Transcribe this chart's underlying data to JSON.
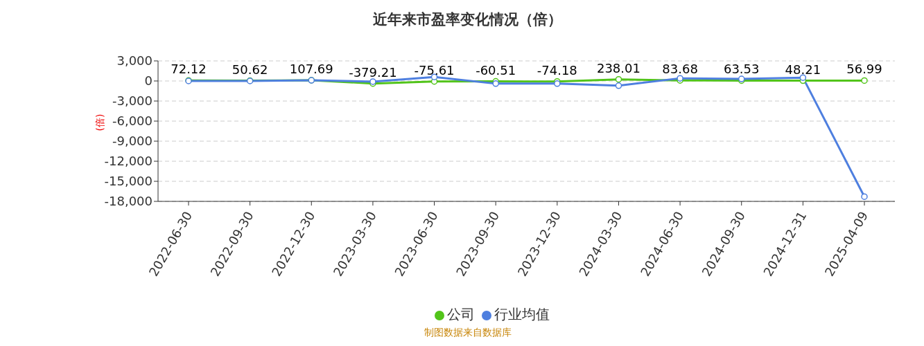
{
  "chart_data": {
    "type": "line",
    "title": "近年来市盈率变化情况（倍）",
    "ylabel": "(倍)",
    "categories": [
      "2022-06-30",
      "2022-09-30",
      "2022-12-30",
      "2023-03-30",
      "2023-06-30",
      "2023-09-30",
      "2023-12-30",
      "2024-03-30",
      "2024-06-30",
      "2024-09-30",
      "2024-12-31",
      "2025-04-09"
    ],
    "series": [
      {
        "name": "公司",
        "color": "#52c41a",
        "values": [
          72.12,
          50.62,
          107.69,
          -379.21,
          -75.61,
          -60.51,
          -74.18,
          238.01,
          83.68,
          63.53,
          48.21,
          56.99
        ],
        "value_labels": [
          "72.12",
          "50.62",
          "107.69",
          "-379.21",
          "-75.61",
          "-60.51",
          "-74.18",
          "238.01",
          "83.68",
          "63.53",
          "48.21",
          "56.99"
        ]
      },
      {
        "name": "行业均值",
        "color": "#4e7fdf",
        "values": [
          0,
          0,
          100,
          -100,
          600,
          -400,
          -400,
          -700,
          400,
          300,
          500,
          -17300
        ]
      }
    ],
    "ylim": [
      -18000,
      3000
    ],
    "yticks": [
      {
        "value": 3000,
        "label": "3,000"
      },
      0,
      {
        "value": -3000,
        "label": "-3,000"
      },
      {
        "value": -6000,
        "label": "-6,000"
      },
      {
        "value": -9000,
        "label": "-9,000"
      },
      {
        "value": -12000,
        "label": "-12,000"
      },
      {
        "value": -15000,
        "label": "-15,000"
      },
      {
        "value": -18000,
        "label": "-18,000"
      }
    ],
    "grid": "y",
    "legend": "bottom",
    "marker": "circle",
    "line_style": "solid",
    "annotations": [
      "制图数据来自数据库"
    ]
  }
}
